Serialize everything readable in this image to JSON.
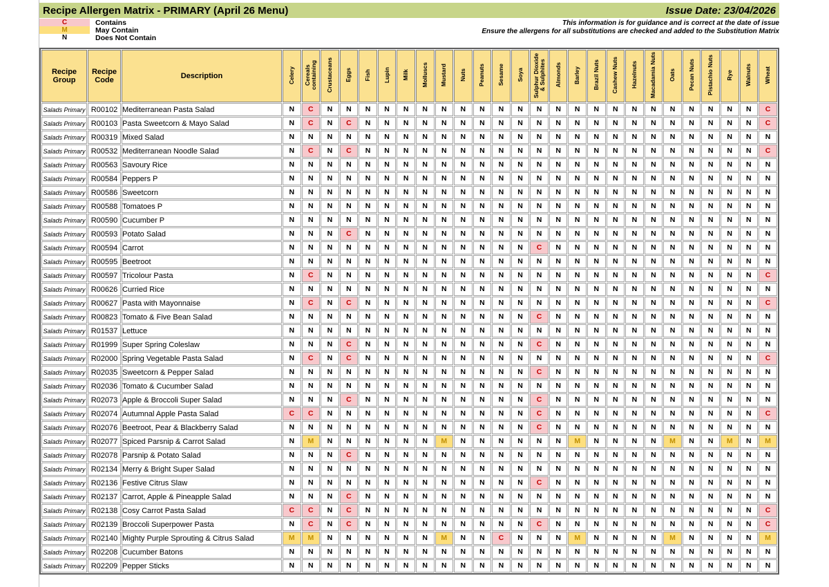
{
  "page": {
    "title": "Recipe Allergen Matrix - PRIMARY (April 26 Menu)",
    "issue_date": "Issue Date: 23/04/2026",
    "note_line1": "This information is for guidance and is correct at the date of issue",
    "note_line2": "Ensure the allergens for all substitutions are checked and added to the Substitution Matrix"
  },
  "legend": [
    {
      "code": "C",
      "label": "Contains"
    },
    {
      "code": "M",
      "label": "May Contain"
    },
    {
      "code": "N",
      "label": "Does Not Contain"
    }
  ],
  "colors": {
    "header_bar": "#c7d589",
    "table_header": "#fbe190",
    "contains_bg": "#f8c8cc",
    "contains_text": "#c00000",
    "may_bg": "#fddf7e",
    "may_text": "#bf8f00"
  },
  "table": {
    "fixed_headers": [
      "Recipe Group",
      "Recipe Code",
      "Description"
    ],
    "allergens": [
      "Celery",
      "Cereals containing",
      "Crustaceans",
      "Eggs",
      "Fish",
      "Lupin",
      "Milk",
      "Molluscs",
      "Mustard",
      "Nuts",
      "Peanuts",
      "Sesame",
      "Soya",
      "Sulphur Dioxide & Sulphites",
      "Almonds",
      "Barley",
      "Brazil Nuts",
      "Cashew Nuts",
      "Hazelnuts",
      "Macadamia Nuts",
      "Oats",
      "Pecan Nuts",
      "Pistachio Nuts",
      "Rye",
      "Walnuts",
      "Wheat"
    ],
    "rows": [
      {
        "group": "Salads Primary",
        "code": "R00102",
        "description": "Mediterranean Pasta Salad",
        "values": "NCNNNNNNNNNNNNNNNNNNNNNNNC"
      },
      {
        "group": "Salads Primary",
        "code": "R00103",
        "description": "Pasta Sweetcorn & Mayo Salad",
        "values": "NCNCNNNNNNNNNNNNNNNNNNNNNC"
      },
      {
        "group": "Salads Primary",
        "code": "R00319",
        "description": "Mixed Salad",
        "values": "NNNNNNNNNNNNNNNNNNNNNNNNNN"
      },
      {
        "group": "Salads Primary",
        "code": "R00532",
        "description": "Mediterranean Noodle Salad",
        "values": "NCNCNNNNNNNNNNNNNNNNNNNNNC"
      },
      {
        "group": "Salads Primary",
        "code": "R00563",
        "description": "Savoury Rice",
        "values": "NNNNNNNNNNNNNNNNNNNNNNNNNN"
      },
      {
        "group": "Salads Primary",
        "code": "R00584",
        "description": "Peppers P",
        "values": "NNNNNNNNNNNNNNNNNNNNNNNNNN"
      },
      {
        "group": "Salads Primary",
        "code": "R00586",
        "description": "Sweetcorn",
        "values": "NNNNNNNNNNNNNNNNNNNNNNNNNN"
      },
      {
        "group": "Salads Primary",
        "code": "R00588",
        "description": "Tomatoes P",
        "values": "NNNNNNNNNNNNNNNNNNNNNNNNNN"
      },
      {
        "group": "Salads Primary",
        "code": "R00590",
        "description": "Cucumber P",
        "values": "NNNNNNNNNNNNNNNNNNNNNNNNNN"
      },
      {
        "group": "Salads Primary",
        "code": "R00593",
        "description": "Potato Salad",
        "values": "NNNCNNNNNNNNNNNNNNNNNNNNNN"
      },
      {
        "group": "Salads Primary",
        "code": "R00594",
        "description": "Carrot",
        "values": "NNNNNNNNNNNNNCNNNNNNNNNNNN"
      },
      {
        "group": "Salads Primary",
        "code": "R00595",
        "description": "Beetroot",
        "values": "NNNNNNNNNNNNNNNNNNNNNNNNNN"
      },
      {
        "group": "Salads Primary",
        "code": "R00597",
        "description": "Tricolour Pasta",
        "values": "NCNNNNNNNNNNNNNNNNNNNNNNNC"
      },
      {
        "group": "Salads Primary",
        "code": "R00626",
        "description": "Curried Rice",
        "values": "NNNNNNNNNNNNNNNNNNNNNNNNNN"
      },
      {
        "group": "Salads Primary",
        "code": "R00627",
        "description": "Pasta with Mayonnaise",
        "values": "NCNCNNNNNNNNNNNNNNNNNNNNNC"
      },
      {
        "group": "Salads Primary",
        "code": "R00823",
        "description": "Tomato & Five Bean Salad",
        "values": "NNNNNNNNNNNNNCNNNNNNNNNNNN"
      },
      {
        "group": "Salads Primary",
        "code": "R01537",
        "description": "Lettuce",
        "values": "NNNNNNNNNNNNNNNNNNNNNNNNNN"
      },
      {
        "group": "Salads Primary",
        "code": "R01999",
        "description": "Super Spring Coleslaw",
        "values": "NNNCNNNNNNNNNCNNNNNNNNNNNN"
      },
      {
        "group": "Salads Primary",
        "code": "R02000",
        "description": "Spring Vegetable Pasta Salad",
        "values": "NCNCNNNNNNNNNNNNNNNNNNNNNC"
      },
      {
        "group": "Salads Primary",
        "code": "R02035",
        "description": "Sweetcorn & Pepper Salad",
        "values": "NNNNNNNNNNNNNCNNNNNNNNNNNN"
      },
      {
        "group": "Salads Primary",
        "code": "R02036",
        "description": "Tomato & Cucumber Salad",
        "values": "NNNNNNNNNNNNNNNNNNNNNNNNNN"
      },
      {
        "group": "Salads Primary",
        "code": "R02073",
        "description": "Apple & Broccoli Super Salad",
        "values": "NNNCNNNNNNNNNCNNNNNNNNNNNN"
      },
      {
        "group": "Salads Primary",
        "code": "R02074",
        "description": "Autumnal Apple Pasta Salad",
        "values": "CCNNNNNNNNNNNCNNNNNNNNNNNC"
      },
      {
        "group": "Salads Primary",
        "code": "R02076",
        "description": "Beetroot, Pear & Blackberry Salad",
        "values": "NNNNNNNNNNNNNCNNNNNNNNNNNN"
      },
      {
        "group": "Salads Primary",
        "code": "R02077",
        "description": "Spiced Parsnip & Carrot Salad",
        "values": "NMNNNNNNMNNNNNNMNNNNMNNMNM"
      },
      {
        "group": "Salads Primary",
        "code": "R02078",
        "description": "Parsnip & Potato Salad",
        "values": "NNNCNNNNNNNNNNNNNNNNNNNNNN"
      },
      {
        "group": "Salads Primary",
        "code": "R02134",
        "description": "Merry & Bright Super Salad",
        "values": "NNNNNNNNNNNNNNNNNNNNNNNNNN"
      },
      {
        "group": "Salads Primary",
        "code": "R02136",
        "description": "Festive Citrus Slaw",
        "values": "NNNNNNNNNNNNNCNNNNNNNNNNNN"
      },
      {
        "group": "Salads Primary",
        "code": "R02137",
        "description": "Carrot, Apple & Pineapple Salad",
        "values": "NNNCNNNNNNNNNNNNNNNNNNNNNN"
      },
      {
        "group": "Salads Primary",
        "code": "R02138",
        "description": "Cosy Carrot Pasta Salad",
        "values": "CCNCNNNNNNNNNNNNNNNNNNNNNC"
      },
      {
        "group": "Salads Primary",
        "code": "R02139",
        "description": "Broccoli Superpower Pasta",
        "values": "NCNCNNNNNNNNNCNNNNNNNNNNNC"
      },
      {
        "group": "Salads Primary",
        "code": "R02140",
        "description": "Mighty Purple Sprouting & Citrus Salad",
        "values": "MMNNNNNNMNNCNNNMNNNNMNNNNM"
      },
      {
        "group": "Salads Primary",
        "code": "R02208",
        "description": "Cucumber Batons",
        "values": "NNNNNNNNNNNNNNNNNNNNNNNNNN"
      },
      {
        "group": "Salads Primary",
        "code": "R02209",
        "description": "Pepper Sticks",
        "values": "NNNNNNNNNNNNNNNNNNNNNNNNNN"
      }
    ]
  }
}
